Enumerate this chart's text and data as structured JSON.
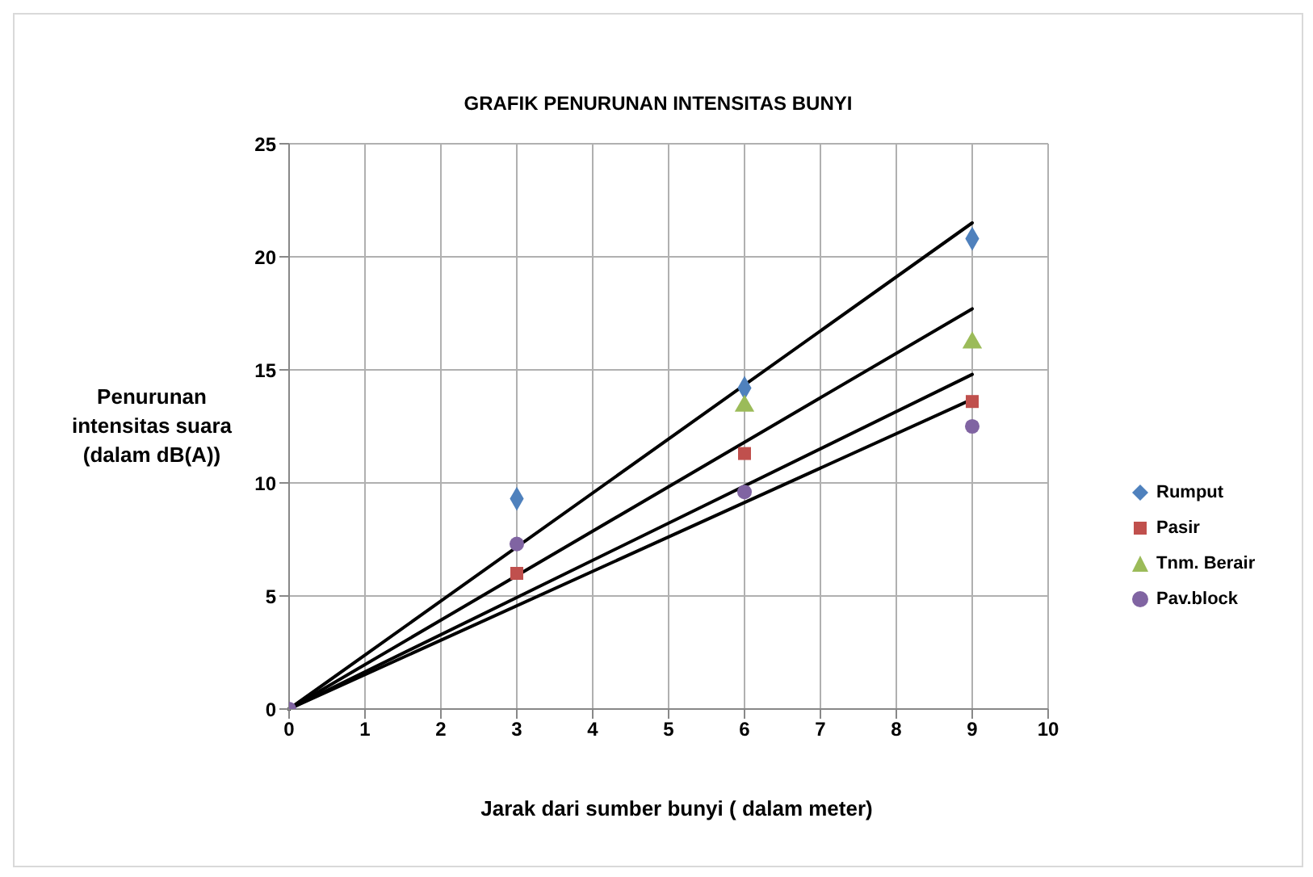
{
  "chart_data": {
    "type": "scatter",
    "title": "GRAFIK PENURUNAN INTENSITAS BUNYI",
    "xlabel": "Jarak dari sumber bunyi ( dalam meter)",
    "ylabel": "Penurunan intensitas suara (dalam dB(A))",
    "x": [
      0,
      3,
      6,
      9
    ],
    "series": [
      {
        "name": "Rumput",
        "color": "#4f81bd",
        "marker": "diamond",
        "values": [
          null,
          9.3,
          14.2,
          20.8
        ]
      },
      {
        "name": "Pasir",
        "color": "#c0504d",
        "marker": "square",
        "values": [
          null,
          6.0,
          11.3,
          13.6
        ]
      },
      {
        "name": "Tnm. Berair",
        "color": "#9bbb59",
        "marker": "triangle",
        "values": [
          null,
          null,
          13.4,
          16.2
        ]
      },
      {
        "name": "Pav.block",
        "color": "#8064a2",
        "marker": "circle",
        "values": [
          0,
          7.3,
          9.6,
          12.5
        ]
      },
      {
        "type": "line",
        "color": "#000000",
        "marker": "none",
        "values": [
          0,
          null,
          null,
          21.5
        ]
      },
      {
        "type": "line",
        "color": "#000000",
        "marker": "none",
        "values": [
          0,
          null,
          null,
          17.7
        ]
      },
      {
        "type": "line",
        "color": "#000000",
        "marker": "none",
        "values": [
          0,
          null,
          null,
          14.8
        ]
      },
      {
        "type": "line",
        "color": "#000000",
        "marker": "none",
        "values": [
          0,
          null,
          null,
          13.7
        ]
      }
    ],
    "xlim": [
      0,
      10
    ],
    "xticks": [
      0,
      1,
      2,
      3,
      4,
      5,
      6,
      7,
      8,
      9,
      10
    ],
    "ylim": [
      0,
      25
    ],
    "yticks": [
      0,
      5,
      10,
      15,
      20,
      25
    ],
    "grid": true,
    "legend": "right"
  }
}
